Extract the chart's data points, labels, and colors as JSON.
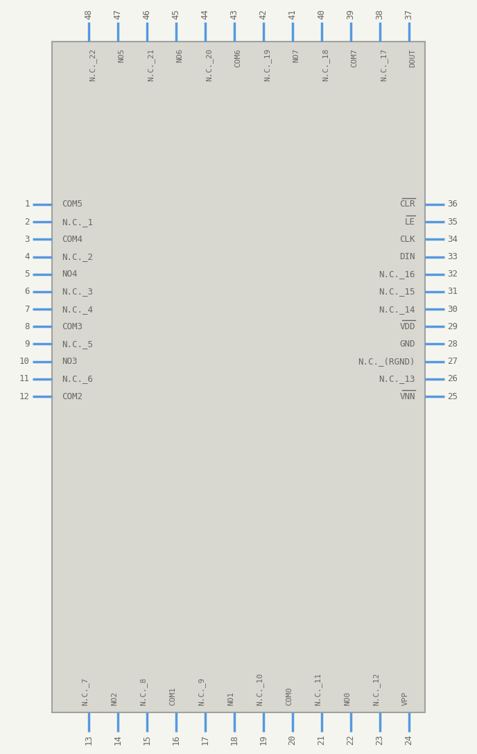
{
  "bg_color": "#f5f5f0",
  "body_fill": "#d8d8d0",
  "body_edge": "#a0a0a0",
  "pin_color": "#5599dd",
  "text_color": "#666666",
  "fig_w": 6.88,
  "fig_h": 10.88,
  "left_pins": [
    {
      "num": 1,
      "label": "COM5",
      "overline": false
    },
    {
      "num": 2,
      "label": "N.C._1",
      "overline": false
    },
    {
      "num": 3,
      "label": "COM4",
      "overline": false
    },
    {
      "num": 4,
      "label": "N.C._2",
      "overline": false
    },
    {
      "num": 5,
      "label": "NO4",
      "overline": false
    },
    {
      "num": 6,
      "label": "N.C._3",
      "overline": false
    },
    {
      "num": 7,
      "label": "N.C._4",
      "overline": false
    },
    {
      "num": 8,
      "label": "COM3",
      "overline": false
    },
    {
      "num": 9,
      "label": "N.C._5",
      "overline": false
    },
    {
      "num": 10,
      "label": "NO3",
      "overline": false
    },
    {
      "num": 11,
      "label": "N.C._6",
      "overline": false
    },
    {
      "num": 12,
      "label": "COM2",
      "overline": false
    }
  ],
  "right_pins": [
    {
      "num": 36,
      "label": "CLR",
      "overline": true
    },
    {
      "num": 35,
      "label": "LE",
      "overline": true
    },
    {
      "num": 34,
      "label": "CLK",
      "overline": false
    },
    {
      "num": 33,
      "label": "DIN",
      "overline": false
    },
    {
      "num": 32,
      "label": "N.C._16",
      "overline": false
    },
    {
      "num": 31,
      "label": "N.C._15",
      "overline": false
    },
    {
      "num": 30,
      "label": "N.C._14",
      "overline": false
    },
    {
      "num": 29,
      "label": "VDD",
      "overline": true
    },
    {
      "num": 28,
      "label": "GND",
      "overline": false
    },
    {
      "num": 27,
      "label": "N.C._(RGND)",
      "overline": false
    },
    {
      "num": 26,
      "label": "N.C._13",
      "overline": false
    },
    {
      "num": 25,
      "label": "VNN",
      "overline": true
    }
  ],
  "top_pins": [
    {
      "num": 48,
      "label": "N.C._22",
      "overline": false
    },
    {
      "num": 47,
      "label": "NO5",
      "overline": false
    },
    {
      "num": 46,
      "label": "N.C._21",
      "overline": false
    },
    {
      "num": 45,
      "label": "NO6",
      "overline": true
    },
    {
      "num": 44,
      "label": "N.C._20",
      "overline": false
    },
    {
      "num": 43,
      "label": "COM6",
      "overline": false
    },
    {
      "num": 42,
      "label": "N.C._19",
      "overline": false
    },
    {
      "num": 41,
      "label": "NO7",
      "overline": true
    },
    {
      "num": 40,
      "label": "N.C._18",
      "overline": false
    },
    {
      "num": 39,
      "label": "COM7",
      "overline": true
    },
    {
      "num": 38,
      "label": "N.C._17",
      "overline": false
    },
    {
      "num": 37,
      "label": "DOUT",
      "overline": false
    }
  ],
  "bottom_pins": [
    {
      "num": 13,
      "label": "N.C._7",
      "overline": false
    },
    {
      "num": 14,
      "label": "NO2",
      "overline": false
    },
    {
      "num": 15,
      "label": "N.C._8",
      "overline": false
    },
    {
      "num": 16,
      "label": "COM1",
      "overline": false
    },
    {
      "num": 17,
      "label": "N.C._9",
      "overline": false
    },
    {
      "num": 18,
      "label": "NO1",
      "overline": false
    },
    {
      "num": 19,
      "label": "N.C._10",
      "overline": false
    },
    {
      "num": 20,
      "label": "COM0",
      "overline": false
    },
    {
      "num": 21,
      "label": "N.C._11",
      "overline": false
    },
    {
      "num": 22,
      "label": "NO0",
      "overline": false
    },
    {
      "num": 23,
      "label": "N.C._12",
      "overline": false
    },
    {
      "num": 24,
      "label": "VPP",
      "overline": false
    }
  ]
}
